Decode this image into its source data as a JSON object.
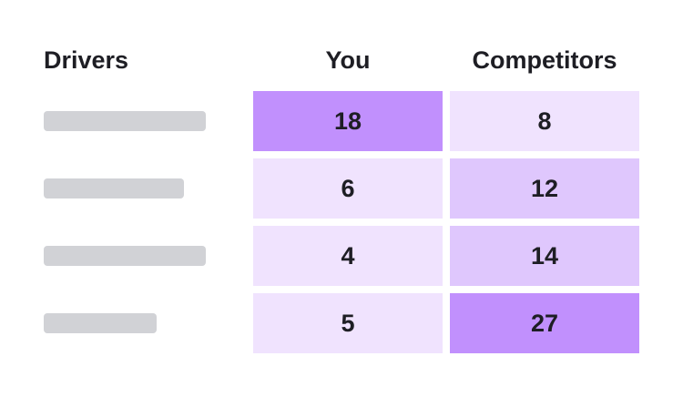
{
  "header": {
    "drivers": "Drivers",
    "you": "You",
    "competitors": "Competitors"
  },
  "table": {
    "rows": [
      {
        "you": {
          "value": 18,
          "color": "#c190fd"
        },
        "competitors": {
          "value": 8,
          "color": "#f0e3fe"
        }
      },
      {
        "you": {
          "value": 6,
          "color": "#f0e3fe"
        },
        "competitors": {
          "value": 12,
          "color": "#dfc7fd"
        }
      },
      {
        "you": {
          "value": 4,
          "color": "#f0e3fe"
        },
        "competitors": {
          "value": 14,
          "color": "#dfc7fd"
        }
      },
      {
        "you": {
          "value": 5,
          "color": "#f0e3fe"
        },
        "competitors": {
          "value": 27,
          "color": "#c190fd"
        }
      }
    ]
  }
}
